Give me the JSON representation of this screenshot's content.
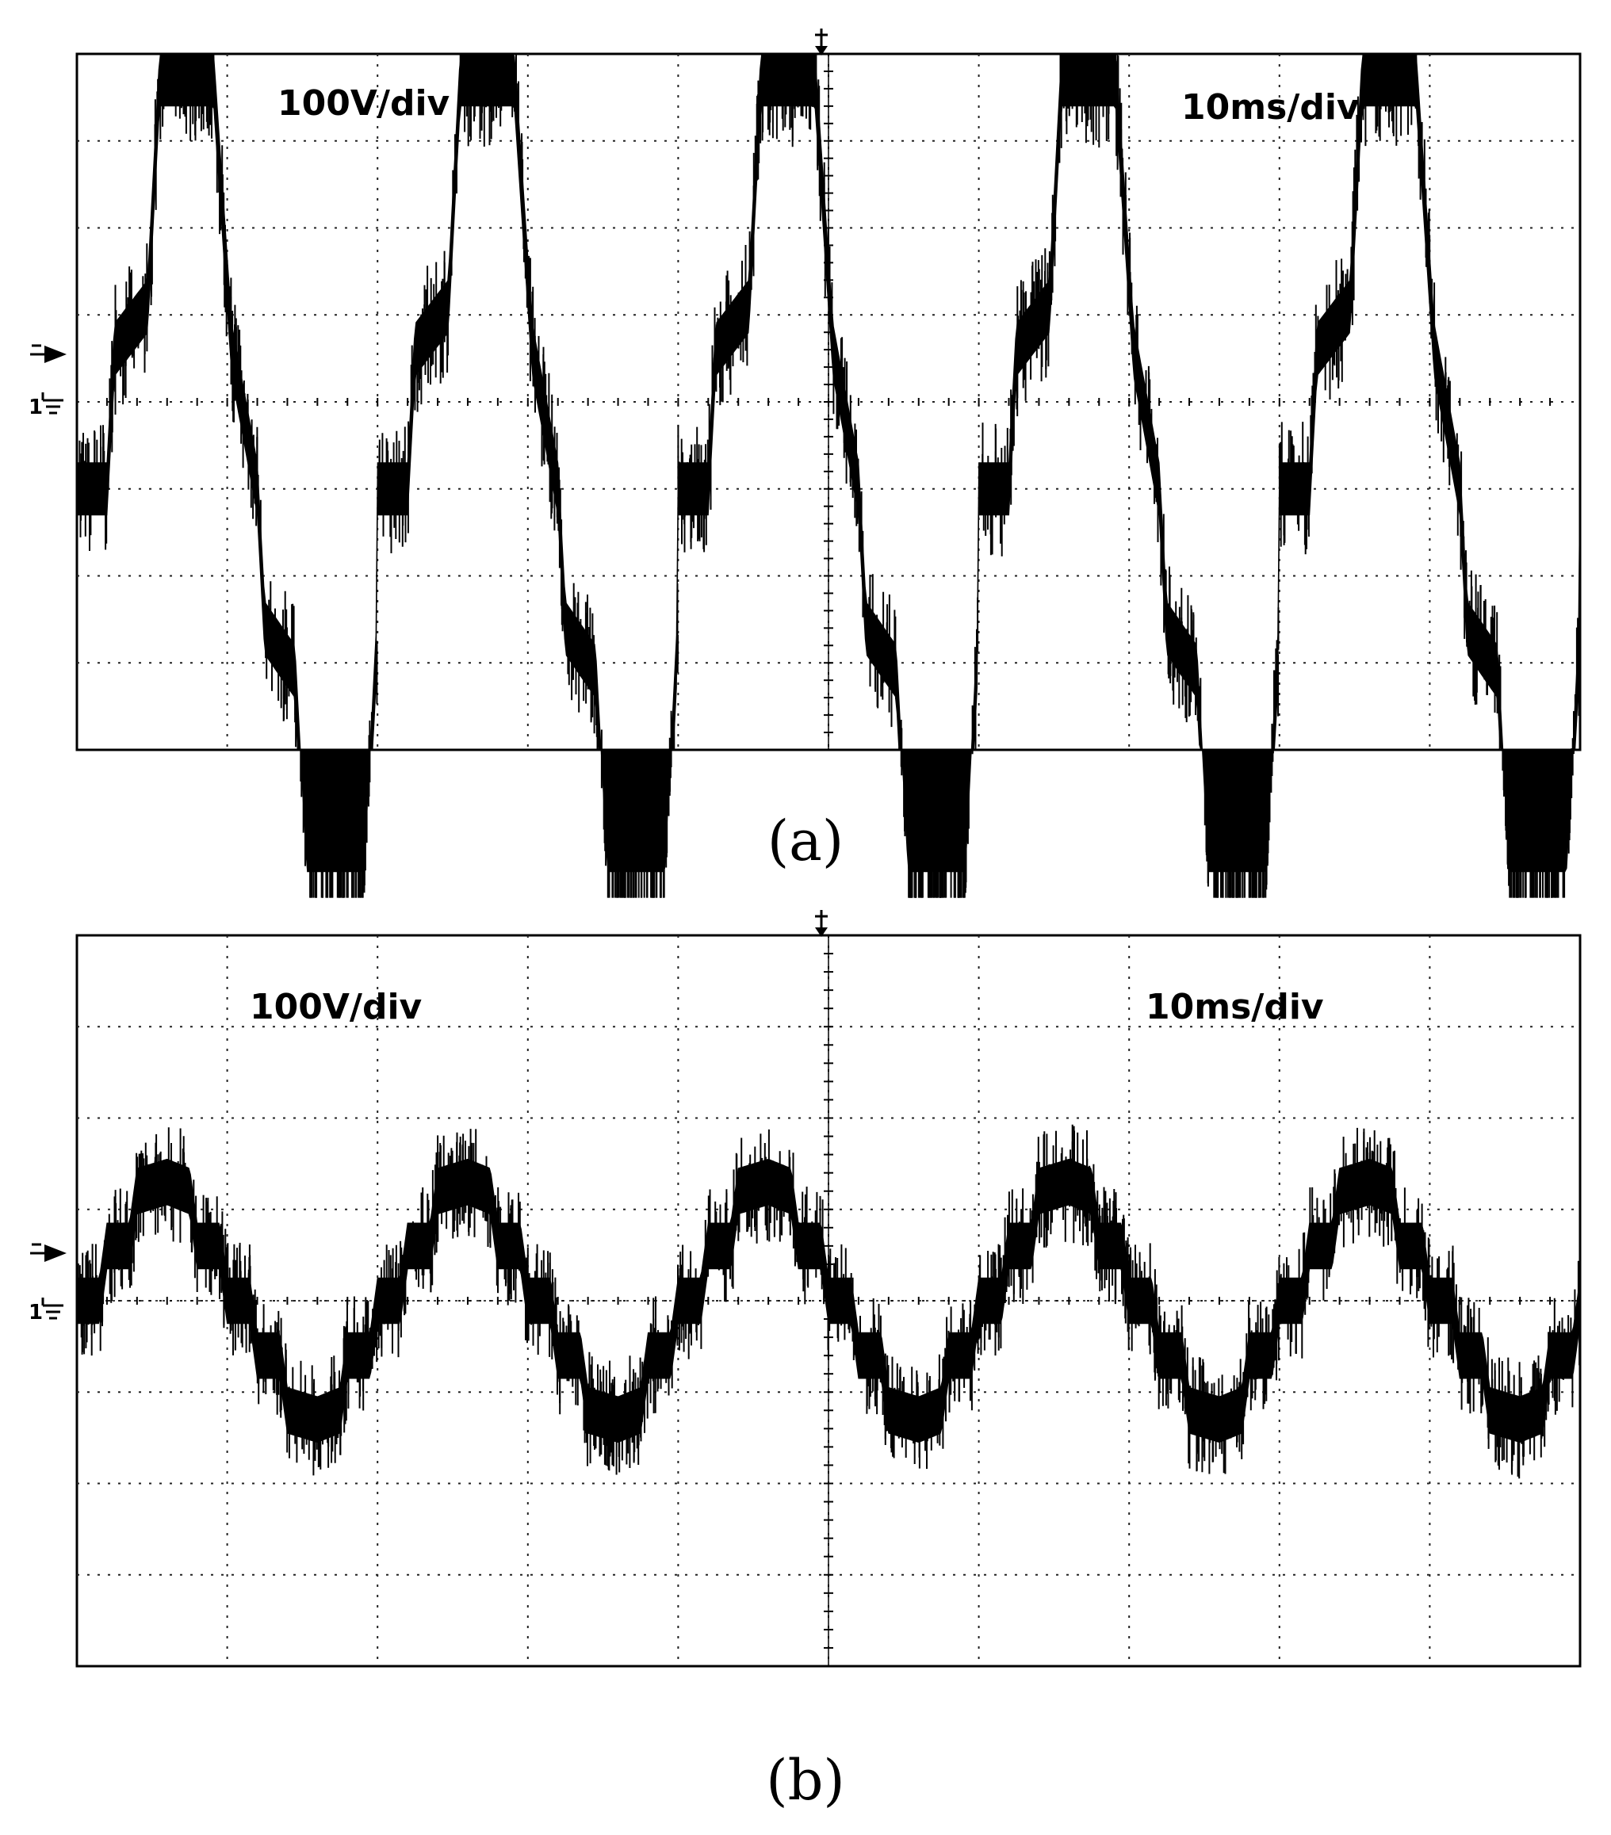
{
  "chart_data": [
    {
      "type": "line",
      "panel_label": "(a)",
      "scope_labels": {
        "volts_per_div": "100V/div",
        "time_per_div": "10ms/div"
      },
      "channel_marker": "1",
      "grid": true,
      "divisions": {
        "x": 10,
        "y": 8
      },
      "xlabel": "",
      "ylabel": "",
      "x_unit": "ms",
      "y_unit": "V",
      "xlim": [
        0,
        100
      ],
      "ylim": [
        -300,
        500
      ],
      "waveform": "three-level PWM voltage (20 ms period)",
      "series": [
        {
          "name": "",
          "period_ms": 20,
          "noise_band_V": 30,
          "envelope": {
            "x": [
              0,
              2,
              2.5,
              4.7,
              5.5,
              9.1,
              10.3,
              12,
              12.5,
              14.5,
              15.3,
              19.1,
              20
            ],
            "y": [
              0,
              0,
              160,
              210,
              470,
              470,
              160,
              0,
              -160,
              -210,
              -470,
              -470,
              -160
            ]
          }
        }
      ]
    },
    {
      "type": "line",
      "panel_label": "(b)",
      "scope_labels": {
        "volts_per_div": "100V/div",
        "time_per_div": "10ms/div"
      },
      "channel_marker": "1",
      "grid": true,
      "divisions": {
        "x": 10,
        "y": 8
      },
      "xlabel": "",
      "ylabel": "",
      "x_unit": "ms",
      "y_unit": "V",
      "xlim": [
        0,
        100
      ],
      "ylim": [
        -400,
        400
      ],
      "waveform": "filtered multilevel voltage (20 ms period)",
      "series": [
        {
          "name": "",
          "period_ms": 20,
          "noise_band_V": 25,
          "envelope": {
            "x": [
              0,
              1.5,
              2,
              3.5,
              4,
              6,
              7.5,
              8,
              9.5,
              10,
              11.5,
              12,
              13.5,
              14,
              16,
              17.5,
              18,
              19.5,
              20
            ],
            "y": [
              0,
              0,
              60,
              60,
              120,
              130,
              120,
              60,
              60,
              0,
              0,
              -60,
              -60,
              -120,
              -130,
              -120,
              -60,
              -60,
              0
            ]
          }
        }
      ]
    }
  ]
}
